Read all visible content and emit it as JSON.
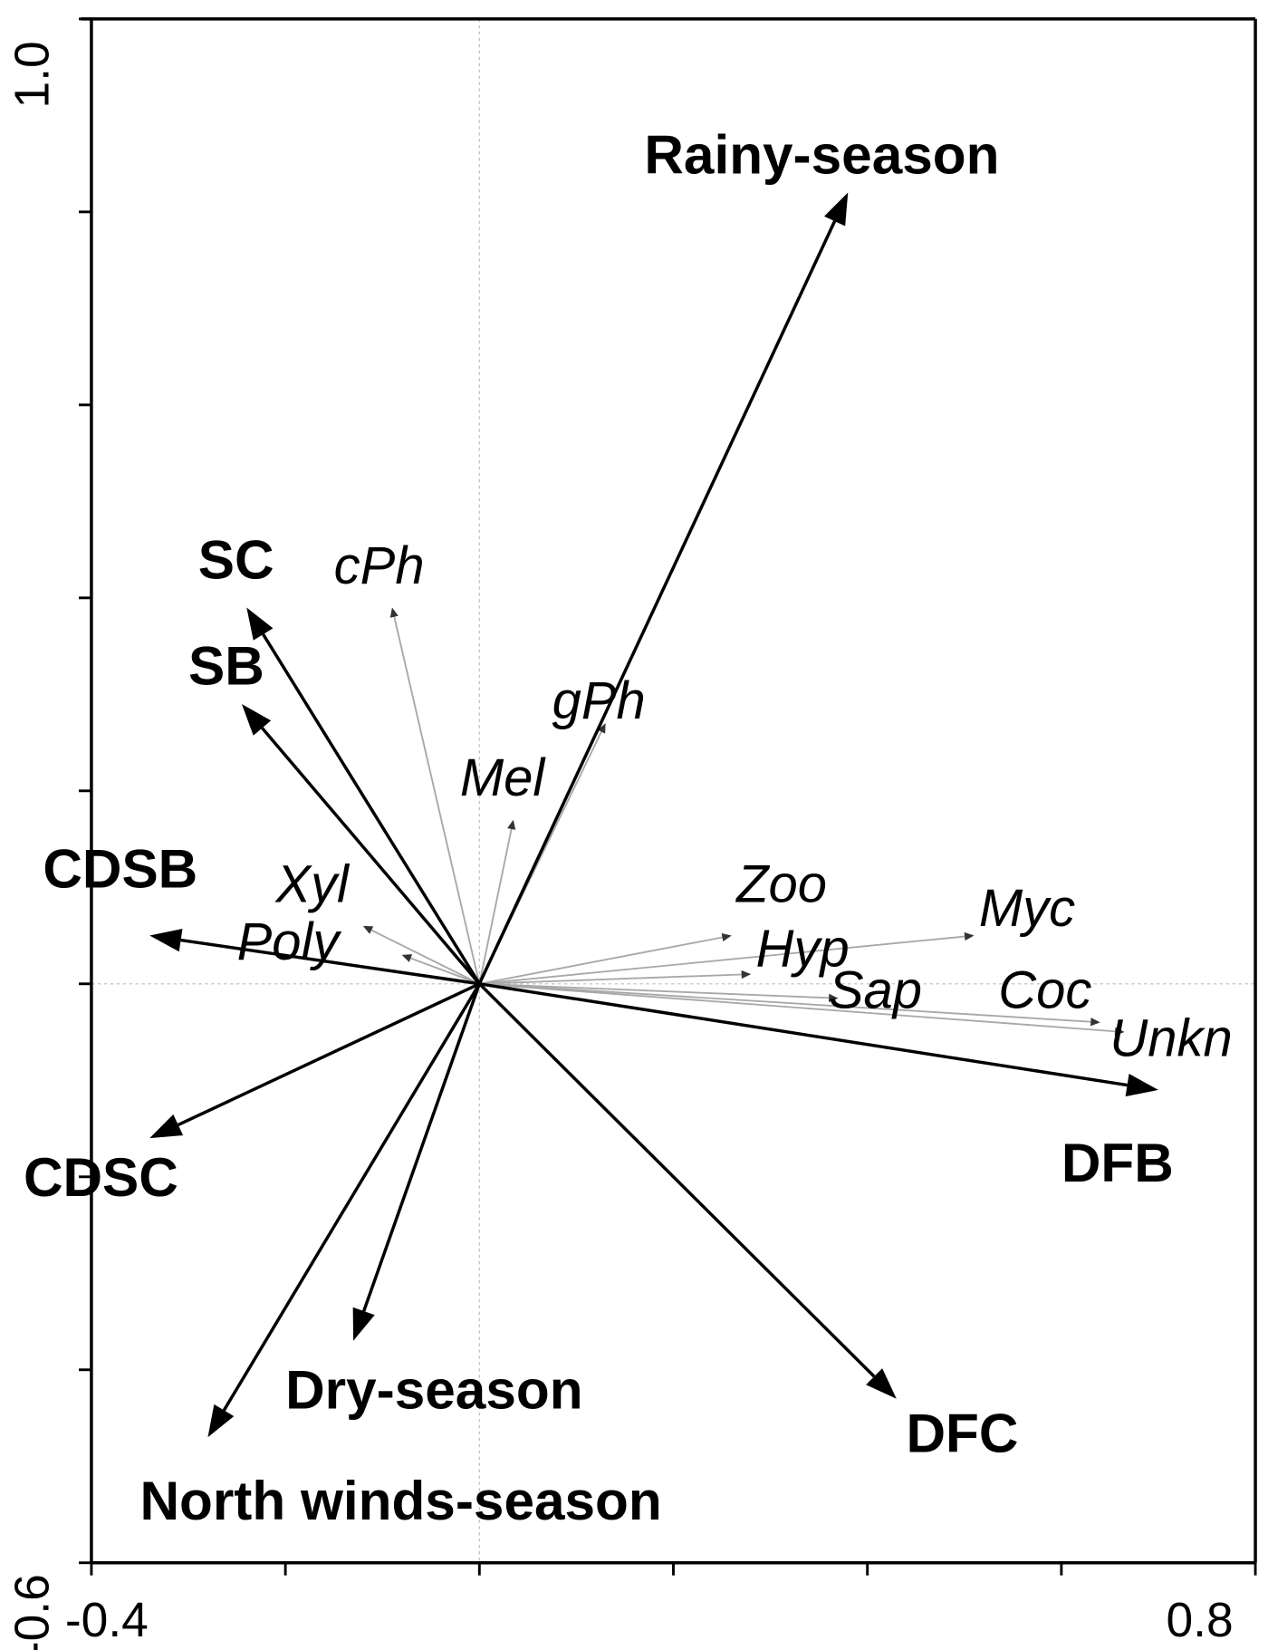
{
  "chart_data": {
    "type": "biplot",
    "title": "",
    "xlabel": "",
    "ylabel": "",
    "xlim": [
      -0.4,
      0.8
    ],
    "ylim": [
      -0.6,
      1.0
    ],
    "x_tick_labels": [
      "-0.4",
      "0.8"
    ],
    "y_tick_labels": [
      "-0.6",
      "1.0"
    ],
    "x_ticks": [
      -0.4,
      -0.2,
      0.0,
      0.2,
      0.4,
      0.6,
      0.8
    ],
    "y_ticks": [
      -0.6,
      -0.4,
      -0.2,
      0.0,
      0.2,
      0.4,
      0.6,
      0.8,
      1.0
    ],
    "reference_lines": {
      "x": 0,
      "y": 0,
      "style": "dotted grey"
    },
    "environmental_vectors": [
      {
        "name": "Rainy-season",
        "x": 0.38,
        "y": 0.82,
        "lx": 0.17,
        "ly": 0.84
      },
      {
        "name": "SC",
        "x": -0.24,
        "y": 0.39,
        "lx": -0.29,
        "ly": 0.42
      },
      {
        "name": "SB",
        "x": -0.245,
        "y": 0.29,
        "lx": -0.3,
        "ly": 0.31
      },
      {
        "name": "CDSB",
        "x": -0.34,
        "y": 0.05,
        "lx": -0.45,
        "ly": 0.1
      },
      {
        "name": "CDSC",
        "x": -0.34,
        "y": -0.16,
        "lx": -0.47,
        "ly": -0.22
      },
      {
        "name": "Dry-season",
        "x": -0.13,
        "y": -0.37,
        "lx": -0.2,
        "ly": -0.44
      },
      {
        "name": "North winds-season",
        "x": -0.28,
        "y": -0.47,
        "lx": -0.35,
        "ly": -0.555
      },
      {
        "name": "DFC",
        "x": 0.43,
        "y": -0.43,
        "lx": 0.44,
        "ly": -0.485
      },
      {
        "name": "DFB",
        "x": 0.7,
        "y": -0.11,
        "lx": 0.6,
        "ly": -0.205
      }
    ],
    "species_vectors": [
      {
        "name": "cPh",
        "x": -0.09,
        "y": 0.39,
        "lx": -0.15,
        "ly": 0.415
      },
      {
        "name": "gPh",
        "x": 0.13,
        "y": 0.27,
        "lx": 0.075,
        "ly": 0.275
      },
      {
        "name": "Mel",
        "x": 0.035,
        "y": 0.17,
        "lx": -0.02,
        "ly": 0.195
      },
      {
        "name": "Xyl",
        "x": -0.12,
        "y": 0.06,
        "lx": -0.21,
        "ly": 0.085
      },
      {
        "name": "Poly",
        "x": -0.08,
        "y": 0.03,
        "lx": -0.25,
        "ly": 0.025
      },
      {
        "name": "Zoo",
        "x": 0.26,
        "y": 0.05,
        "lx": 0.265,
        "ly": 0.085
      },
      {
        "name": "Myc",
        "x": 0.51,
        "y": 0.05,
        "lx": 0.515,
        "ly": 0.06
      },
      {
        "name": "Hyp",
        "x": 0.28,
        "y": 0.01,
        "lx": 0.285,
        "ly": 0.018
      },
      {
        "name": "Sap",
        "x": 0.37,
        "y": -0.015,
        "lx": 0.36,
        "ly": -0.025
      },
      {
        "name": "Coc",
        "x": 0.64,
        "y": -0.04,
        "lx": 0.535,
        "ly": -0.025
      },
      {
        "name": "Unkn",
        "x": 0.665,
        "y": -0.05,
        "lx": 0.65,
        "ly": -0.075
      }
    ],
    "grid": false,
    "legend": null
  }
}
